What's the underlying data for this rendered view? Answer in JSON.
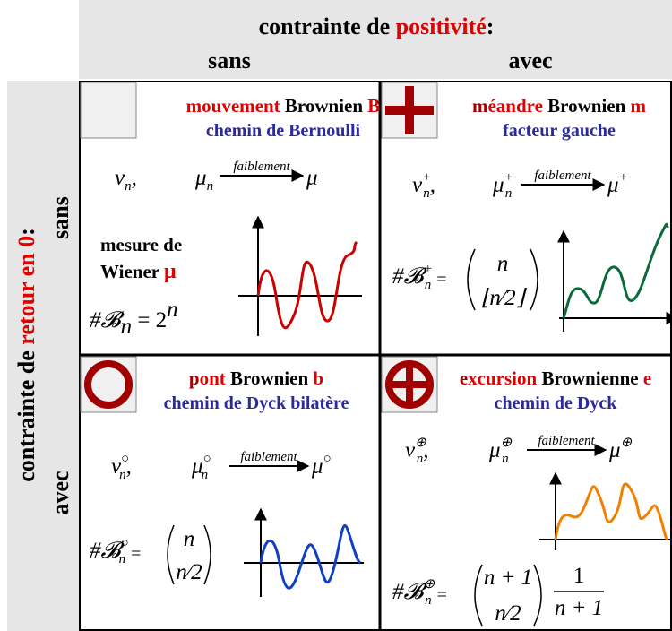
{
  "header": {
    "title": [
      "contrainte de ",
      "positivité",
      ":"
    ],
    "columns": [
      "sans",
      "avec"
    ]
  },
  "side": {
    "title": [
      "contrainte de ",
      "retour en 0",
      ":"
    ],
    "rows": [
      "sans",
      "avec"
    ]
  },
  "cells": [
    {
      "title": [
        "mouvement",
        " Brownien ",
        "B"
      ],
      "subtitle": "chemin de Bernoulli",
      "nu": {
        "base": "ν",
        "sub": "n",
        "tail": ","
      },
      "mu": {
        "base": "μ",
        "sub": "n"
      },
      "arrow": "faiblement",
      "limit": {
        "base": "μ"
      },
      "label": [
        "mesure de",
        "Wiener ",
        "μ"
      ],
      "count": {
        "base": "#𝓑",
        "sub": "n",
        "eq": " = 2",
        "sup": "n"
      }
    },
    {
      "title": [
        "m",
        "éandre",
        " Brownien ",
        "m"
      ],
      "subtitle": "facteur gauche",
      "nu": {
        "base": "ν",
        "sup": "+",
        "sub": "n",
        "tail": ","
      },
      "mu": {
        "base": "μ",
        "sup": "+",
        "sub": "n"
      },
      "arrow": "faiblement",
      "limit": {
        "base": "μ",
        "sup": "+"
      },
      "count": {
        "base": "#𝓑",
        "sup": "+",
        "sub": "n",
        "eq": "="
      },
      "binom": {
        "top": "n",
        "bottom": "⌊n⁄2⌋"
      }
    },
    {
      "title": [
        "p",
        "ont",
        " Brownien ",
        "b"
      ],
      "subtitle": "chemin de Dyck bilatère",
      "nu": {
        "base": "ν",
        "sup": "○",
        "sub": "n",
        "tail": ","
      },
      "mu": {
        "base": "μ",
        "sup": "○",
        "sub": "n"
      },
      "arrow": "faiblement",
      "limit": {
        "base": "μ",
        "sup": "○"
      },
      "count": {
        "base": "#𝓑",
        "sup": "○",
        "sub": "n",
        "eq": "="
      },
      "binom": {
        "top": "n",
        "bottom": "n⁄2"
      }
    },
    {
      "title": [
        "e",
        "xcursion",
        " Brownienne ",
        "e"
      ],
      "subtitle": "chemin de Dyck",
      "nu": {
        "base": "ν",
        "sup": "⊕",
        "sub": "n",
        "tail": ","
      },
      "mu": {
        "base": "μ",
        "sup": "⊕",
        "sub": "n"
      },
      "arrow": "faiblement",
      "limit": {
        "base": "μ",
        "sup": "⊕"
      },
      "count": {
        "base": "#𝓑",
        "sup": "⊕",
        "sub": "n",
        "eq": "="
      },
      "binom": {
        "top": "n + 1",
        "bottom": "n⁄2"
      },
      "fraction": {
        "num": "1",
        "den": "n + 1"
      }
    }
  ]
}
